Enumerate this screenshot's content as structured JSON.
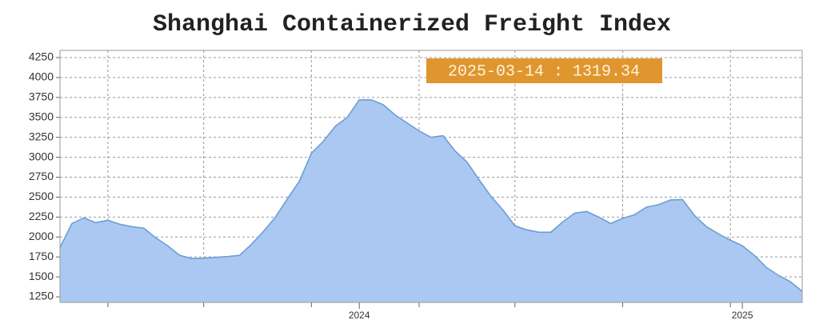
{
  "chart_data": {
    "type": "area",
    "title": "Shanghai Containerized Freight Index",
    "annotation": "2025-03-14 : 1319.34",
    "categories": [
      null,
      null,
      null,
      null,
      null,
      null,
      null,
      null,
      null,
      null,
      null,
      null,
      null,
      null,
      null,
      null,
      null,
      null,
      null,
      null,
      null,
      null,
      null,
      null,
      null,
      "2024",
      null,
      null,
      null,
      null,
      null,
      null,
      null,
      null,
      null,
      null,
      null,
      null,
      null,
      null,
      null,
      null,
      null,
      null,
      null,
      null,
      null,
      null,
      null,
      null,
      null,
      null,
      null,
      null,
      null,
      null,
      null,
      "2025",
      null,
      null,
      null,
      null,
      null
    ],
    "values": [
      1870,
      2170,
      2240,
      2180,
      2210,
      2160,
      2130,
      2110,
      1990,
      1890,
      1770,
      1730,
      1735,
      1745,
      1755,
      1770,
      1910,
      2070,
      2250,
      2480,
      2700,
      3050,
      3200,
      3390,
      3500,
      3720,
      3720,
      3660,
      3530,
      3430,
      3330,
      3250,
      3270,
      3080,
      2940,
      2720,
      2510,
      2340,
      2140,
      2090,
      2060,
      2060,
      2190,
      2300,
      2320,
      2250,
      2170,
      2235,
      2280,
      2375,
      2405,
      2465,
      2470,
      2270,
      2130,
      2040,
      1960,
      1890,
      1770,
      1620,
      1520,
      1440,
      1319.34
    ],
    "color": "#aac8f2",
    "line_color": "#6b9fd3",
    "ylim": [
      1180,
      4340
    ],
    "yticks": [
      1250,
      1500,
      1750,
      2000,
      2250,
      2500,
      2750,
      3000,
      3250,
      3500,
      3750,
      4000,
      4250
    ],
    "grid": true
  }
}
